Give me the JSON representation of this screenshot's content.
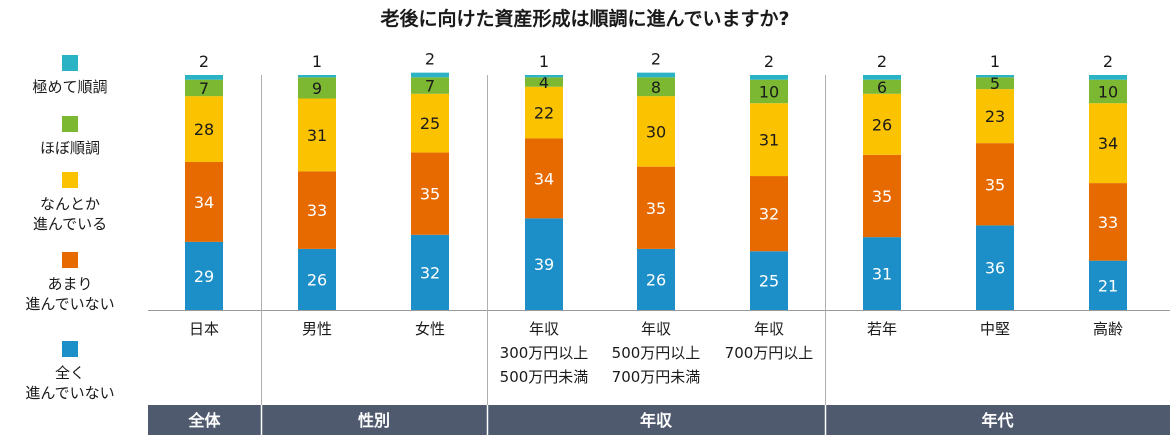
{
  "title": "老後に向けた資産形成は順調に進んでいますか?",
  "legend": [
    {
      "label": "極めて順調",
      "color": "#2ab3c4"
    },
    {
      "label": "ほぼ順調",
      "color": "#7cb832"
    },
    {
      "label": "なんとか\n進んでいる",
      "color": "#fbc200"
    },
    {
      "label": "あまり\n進んでいない",
      "color": "#e66a00"
    },
    {
      "label": "全く\n進んでいない",
      "color": "#1c8fc8"
    }
  ],
  "chart_data": {
    "type": "bar",
    "stacked": true,
    "unit": "%",
    "categories": [
      "日本",
      "男性",
      "女性",
      "年収\n300万円以上\n500万円未満",
      "年収\n500万円以上\n700万円未満",
      "年収\n700万円以上",
      "若年",
      "中堅",
      "高齢"
    ],
    "series": [
      {
        "name": "全く進んでいない",
        "color": "#1c8fc8",
        "values": [
          29,
          26,
          32,
          39,
          26,
          25,
          31,
          36,
          21
        ]
      },
      {
        "name": "あまり進んでいない",
        "color": "#e66a00",
        "values": [
          34,
          33,
          35,
          34,
          35,
          32,
          35,
          35,
          33
        ]
      },
      {
        "name": "なんとか進んでいる",
        "color": "#fbc200",
        "values": [
          28,
          31,
          25,
          22,
          30,
          31,
          26,
          23,
          34
        ]
      },
      {
        "name": "ほぼ順調",
        "color": "#7cb832",
        "values": [
          7,
          9,
          7,
          4,
          8,
          10,
          6,
          5,
          10
        ]
      },
      {
        "name": "極めて順調",
        "color": "#2ab3c4",
        "values": [
          2,
          1,
          2,
          1,
          2,
          2,
          2,
          1,
          2
        ]
      }
    ],
    "groups": [
      {
        "label": "全体",
        "from": 0,
        "to": 0
      },
      {
        "label": "性別",
        "from": 1,
        "to": 2
      },
      {
        "label": "年収",
        "from": 3,
        "to": 5
      },
      {
        "label": "年代",
        "from": 6,
        "to": 8
      }
    ],
    "ylim": [
      0,
      100
    ],
    "grid": false,
    "legend_position": "left"
  }
}
